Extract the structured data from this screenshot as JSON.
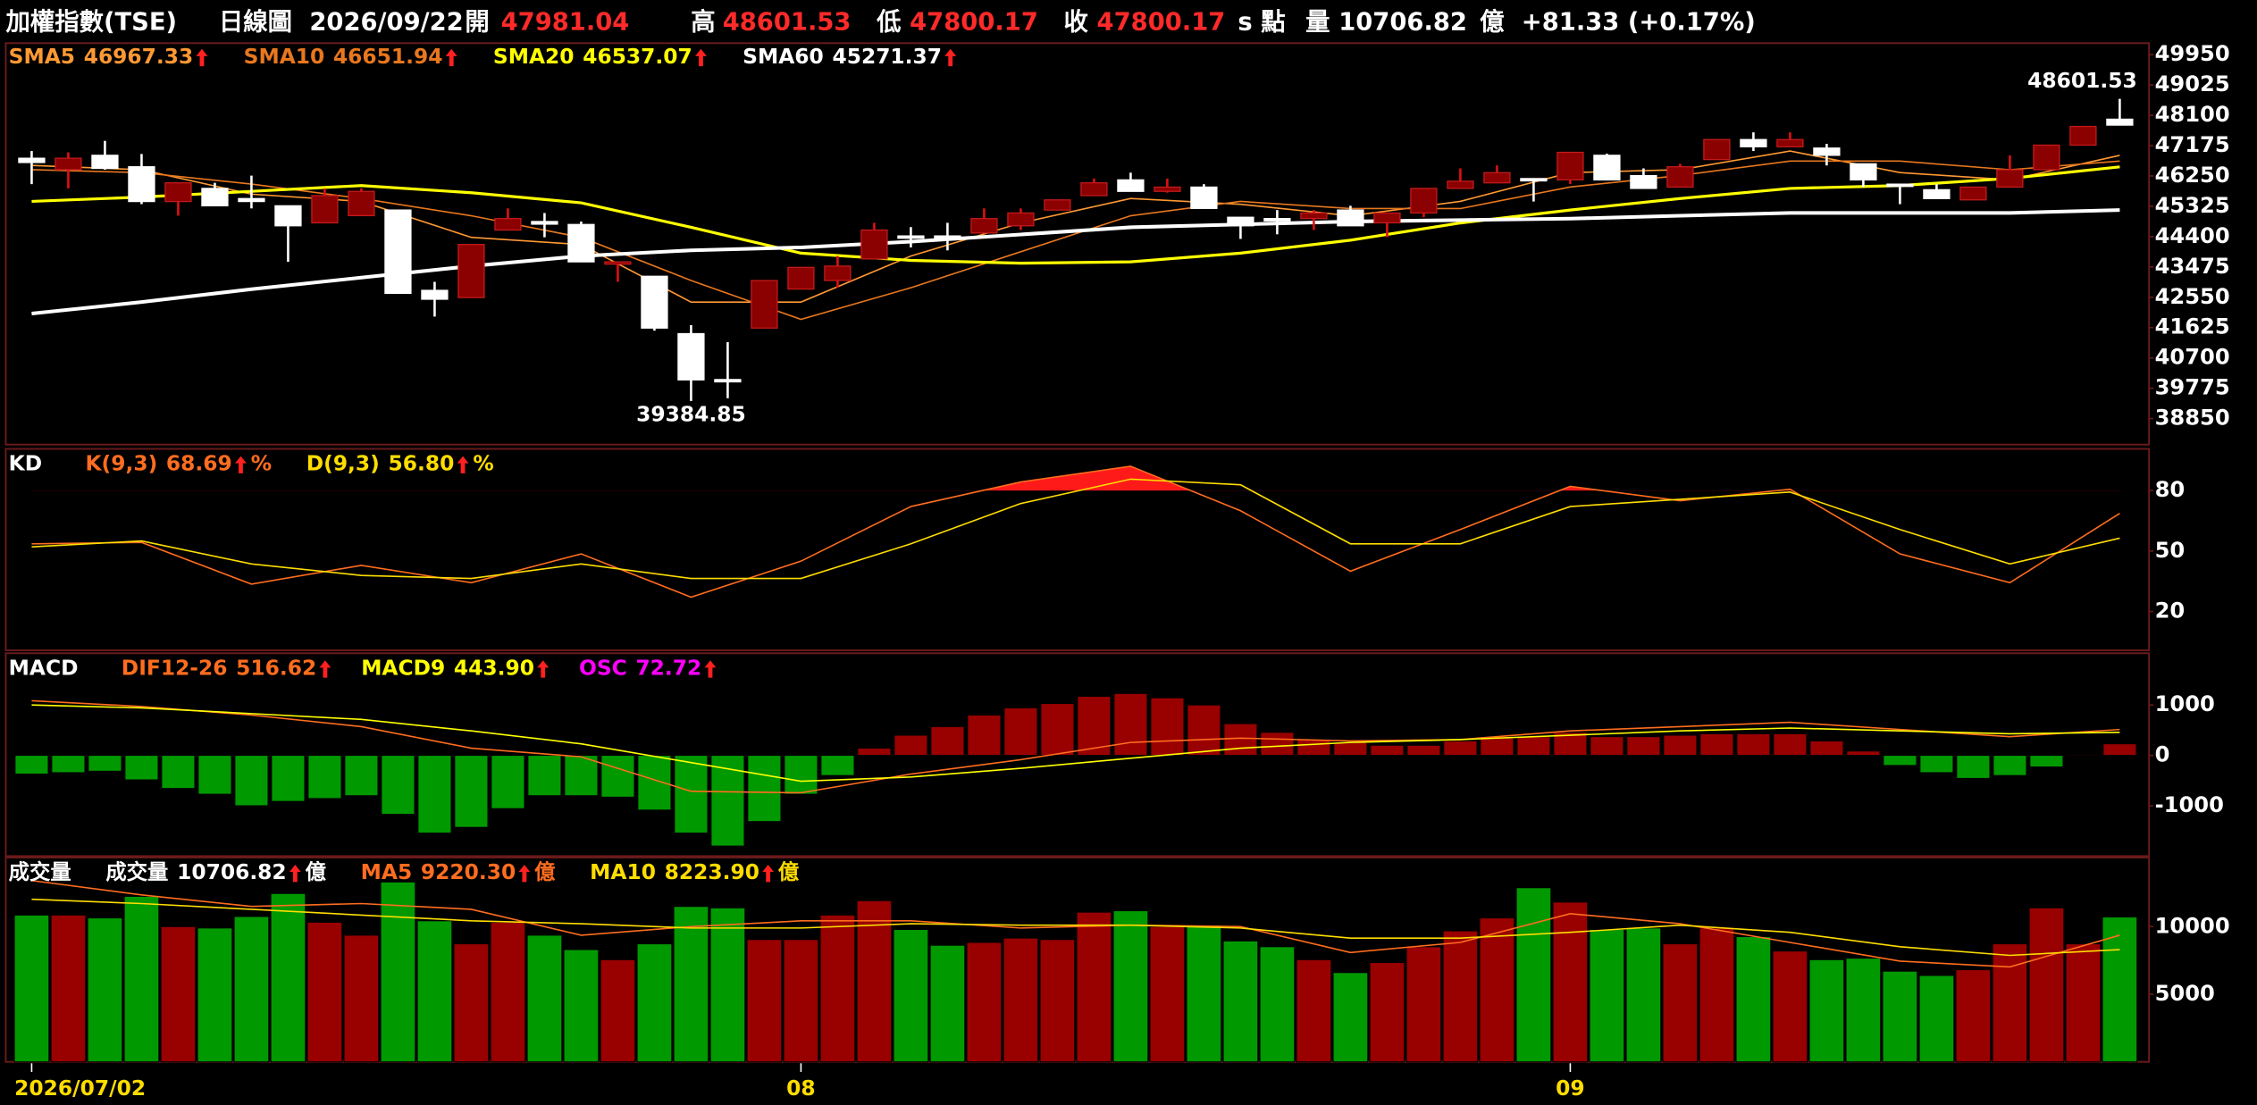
{
  "header": {
    "name": "加權指數(TSE)",
    "period": "日線圖",
    "date": "2026/09/22",
    "open_label": "開",
    "high_label": "高",
    "low_label": "低",
    "close_label": "收",
    "point_unit": "s 點",
    "volume_label": "量",
    "volume_unit": "億",
    "change": "+81.33 (+0.17%)"
  },
  "chart_data": [
    {
      "type": "candlestick",
      "categories": [
        "2026/07/02",
        null,
        null,
        null,
        null,
        null,
        null,
        null,
        null,
        null,
        null,
        null,
        null,
        null,
        null,
        null,
        null,
        null,
        null,
        null,
        null,
        "08",
        null,
        null,
        null,
        null,
        null,
        null,
        null,
        null,
        null,
        null,
        null,
        null,
        null,
        null,
        null,
        null,
        null,
        null,
        null,
        null,
        "09",
        null,
        null,
        null,
        null,
        null,
        null,
        null,
        null,
        null,
        null,
        null,
        null,
        null,
        null,
        null
      ],
      "open": [
        46790,
        46440,
        46880,
        46530,
        45470,
        45870,
        45560,
        45340,
        44820,
        45040,
        45210,
        42760,
        42540,
        44600,
        44860,
        44770,
        43580,
        43190,
        41440,
        40040,
        41610,
        42800,
        43060,
        43720,
        44420,
        44420,
        44510,
        44730,
        45210,
        45650,
        46130,
        45780,
        45910,
        44990,
        44950,
        44950,
        45210,
        44820,
        45120,
        45870,
        46040,
        46170,
        46130,
        46880,
        46260,
        45910,
        46750,
        47360,
        47140,
        47100,
        46620,
        46000,
        45830,
        45520,
        45910,
        46440,
        47190,
        47981.04
      ],
      "high": [
        47010,
        46970,
        47320,
        46920,
        46040,
        46040,
        46260,
        45340,
        45870,
        45870,
        45210,
        43020,
        44160,
        45260,
        45120,
        44860,
        43630,
        43190,
        41700,
        41180,
        43060,
        43460,
        43810,
        44820,
        44690,
        44820,
        45260,
        45260,
        45520,
        46170,
        46350,
        46170,
        46000,
        44990,
        45210,
        45210,
        45340,
        45120,
        45870,
        46480,
        46570,
        46170,
        46970,
        46930,
        46480,
        46620,
        47360,
        47580,
        47580,
        47230,
        46620,
        46000,
        46000,
        45910,
        46880,
        47190,
        47760,
        48601.53
      ],
      "low": [
        46000,
        45870,
        46440,
        45390,
        45040,
        45340,
        45260,
        43630,
        44820,
        45040,
        42670,
        41960,
        42540,
        44600,
        44380,
        43630,
        43020,
        41530,
        39384.85,
        39470,
        41610,
        42800,
        42840,
        43720,
        44070,
        43980,
        44510,
        44600,
        45210,
        45650,
        45780,
        45740,
        45260,
        44330,
        44470,
        44600,
        44730,
        44380,
        44990,
        45870,
        46040,
        45470,
        46000,
        46130,
        45870,
        45910,
        46750,
        47010,
        47140,
        46570,
        45910,
        45390,
        45560,
        45520,
        45910,
        46440,
        47190,
        47800.17
      ],
      "close": [
        46660,
        46790,
        46480,
        45470,
        46040,
        45340,
        45470,
        44730,
        45650,
        45780,
        42670,
        42490,
        44160,
        44950,
        44780,
        43630,
        43630,
        41610,
        40030,
        40000,
        43060,
        43460,
        43500,
        44600,
        44380,
        44380,
        44950,
        45120,
        45520,
        46040,
        45780,
        45910,
        45260,
        44730,
        44900,
        45120,
        44730,
        45120,
        45870,
        46090,
        46350,
        46130,
        46970,
        46130,
        45870,
        46530,
        47360,
        47140,
        47360,
        46880,
        46130,
        45960,
        45560,
        45910,
        46440,
        47190,
        47760,
        47800.17
      ],
      "up_color": "#8b0000",
      "down_color": "#ffffff",
      "ylim": [
        38100,
        50300
      ],
      "yticks": [
        49950,
        49025,
        48100,
        47175,
        46250,
        45325,
        44400,
        43475,
        42550,
        41625,
        40700,
        39775,
        38850
      ],
      "series": [
        {
          "name": "SMA5",
          "color": "#ff9933",
          "readout": "46967.33",
          "x": [
            0,
            3,
            6,
            9,
            12,
            15,
            18,
            21,
            24,
            27,
            30,
            33,
            36,
            39,
            42,
            45,
            48,
            51,
            54,
            57
          ],
          "values": [
            46571,
            46440,
            45694,
            45474,
            44377,
            44158,
            42403,
            42403,
            43807,
            44816,
            45562,
            45387,
            45036,
            45474,
            46352,
            46440,
            47010,
            46352,
            46132,
            46878
          ]
        },
        {
          "name": "SMA10",
          "color": "#e8771e",
          "readout": "46651.94",
          "x": [
            0,
            3,
            6,
            9,
            12,
            15,
            18,
            21,
            24,
            27,
            30,
            33,
            36,
            39,
            42,
            45,
            48,
            51,
            54,
            57
          ],
          "values": [
            46440,
            46352,
            46001,
            45562,
            45036,
            44377,
            43061,
            41876,
            42841,
            43938,
            45036,
            45474,
            45255,
            45255,
            45913,
            46264,
            46703,
            46703,
            46440,
            46703
          ]
        },
        {
          "name": "SMA20",
          "color": "#ffff00",
          "readout": "46537.07",
          "x": [
            0,
            3,
            6,
            9,
            12,
            15,
            18,
            21,
            24,
            27,
            30,
            33,
            36,
            39,
            42,
            45,
            48,
            51,
            54,
            57
          ],
          "values": [
            45474,
            45606,
            45781,
            45957,
            45738,
            45430,
            44684,
            43895,
            43675,
            43588,
            43631,
            43895,
            44290,
            44816,
            45211,
            45562,
            45869,
            45957,
            46176,
            46527
          ]
        },
        {
          "name": "SMA60",
          "color": "#ffffff",
          "readout": "45271.37",
          "x": [
            0,
            3,
            6,
            9,
            12,
            15,
            18,
            21,
            24,
            27,
            30,
            33,
            36,
            39,
            42,
            45,
            48,
            51,
            54,
            57
          ],
          "values": [
            42052,
            42403,
            42797,
            43149,
            43500,
            43807,
            43982,
            44070,
            44246,
            44465,
            44684,
            44772,
            44860,
            44904,
            44948,
            45036,
            45123,
            45123,
            45123,
            45211
          ]
        }
      ]
    },
    {
      "type": "line",
      "title": "KD",
      "ylim": [
        0,
        100
      ],
      "yticks": [
        20,
        50,
        80
      ],
      "fill_color": "#ff1a1a",
      "series": [
        {
          "name": "K(9,3)",
          "color": "#ff6d1f",
          "readout": "68.69",
          "unit": "%",
          "x": [
            0,
            3,
            6,
            9,
            12,
            15,
            18,
            21,
            24,
            27,
            30,
            33,
            36,
            39,
            42,
            45,
            48,
            51,
            54,
            57
          ],
          "values": [
            53.6,
            54.3,
            33.6,
            42.9,
            34.3,
            48.6,
            27.1,
            45,
            72.1,
            84.3,
            92.1,
            70,
            40,
            60.7,
            82.1,
            75,
            80.7,
            48.6,
            34.3,
            68.7
          ]
        },
        {
          "name": "D(9,3)",
          "color": "#ffdd00",
          "readout": "56.80",
          "unit": "%",
          "x": [
            0,
            3,
            6,
            9,
            12,
            15,
            18,
            21,
            24,
            27,
            30,
            33,
            36,
            39,
            42,
            45,
            48,
            51,
            54,
            57
          ],
          "values": [
            52.1,
            55,
            43.6,
            37.9,
            36.4,
            43.6,
            36.4,
            36.4,
            53.6,
            73.6,
            85.7,
            82.9,
            53.6,
            53.6,
            72.1,
            75.7,
            79.3,
            60.7,
            43.6,
            56.4
          ]
        }
      ]
    },
    {
      "type": "macd",
      "title": "MACD",
      "ylim": [
        -2000,
        2000
      ],
      "yticks": [
        -1000,
        0,
        1000
      ],
      "series": [
        {
          "name": "DIF12-26",
          "color": "#ff6d1f",
          "readout": "516.62",
          "x": [
            0,
            3,
            6,
            9,
            12,
            15,
            18,
            21,
            24,
            27,
            30,
            33,
            36,
            39,
            42,
            45,
            48,
            51,
            54,
            57
          ],
          "values": [
            1086,
            971,
            800,
            571,
            143,
            -29,
            -714,
            -743,
            -371,
            -86,
            257,
            343,
            286,
            314,
            486,
            571,
            657,
            514,
            371,
            514
          ]
        },
        {
          "name": "MACD9",
          "color": "#ffff00",
          "readout": "443.90",
          "x": [
            0,
            3,
            6,
            9,
            12,
            15,
            18,
            21,
            24,
            27,
            30,
            33,
            36,
            39,
            42,
            45,
            48,
            51,
            54,
            57
          ],
          "values": [
            1000,
            943,
            829,
            714,
            486,
            229,
            -143,
            -514,
            -429,
            -257,
            -57,
            143,
            257,
            314,
            400,
            486,
            543,
            486,
            429,
            457
          ]
        }
      ],
      "histogram": {
        "name": "OSC",
        "color": "#ff00ff",
        "readout": "72.72",
        "up_color": "#990000",
        "down_color": "#009900",
        "values": [
          -371,
          -343,
          -314,
          -486,
          -657,
          -771,
          -1000,
          -914,
          -857,
          -800,
          -1171,
          -1543,
          -1429,
          -1057,
          -800,
          -800,
          -829,
          -1086,
          -1543,
          -1800,
          -1314,
          -771,
          -400,
          143,
          400,
          571,
          800,
          943,
          1029,
          1171,
          1229,
          1143,
          1000,
          629,
          457,
          314,
          257,
          200,
          200,
          286,
          371,
          371,
          457,
          371,
          371,
          400,
          429,
          429,
          429,
          286,
          86,
          -200,
          -343,
          -457,
          -400,
          -229,
          20,
          229
        ]
      }
    },
    {
      "type": "volume",
      "title": "成交量",
      "ylim": [
        0,
        15000
      ],
      "yticks": [
        5000,
        10000
      ],
      "bars": {
        "name": "成交量",
        "color": "#ffffff",
        "unit": "億",
        "up_color": "#990000",
        "down_color": "#009900",
        "values": [
          10851,
          10851,
          10638,
          12234,
          10000,
          9894,
          10745,
          12447,
          10319,
          9362,
          13298,
          10426,
          8723,
          10319,
          9362,
          8298,
          7553,
          8723,
          11489,
          11383,
          9043,
          9043,
          10851,
          11915,
          9787,
          8617,
          8830,
          9149,
          9043,
          11064,
          11170,
          10000,
          10106,
          8936,
          8511,
          7553,
          6596,
          7340,
          8511,
          9681,
          10638,
          12872,
          11809,
          9787,
          9894,
          8723,
          9894,
          9255,
          8191,
          7553,
          7660,
          6702,
          6383,
          6809,
          8723,
          11383,
          8723,
          10706.82
        ]
      },
      "series": [
        {
          "name": "MA5",
          "color": "#ff6d1f",
          "readout": "9220.30",
          "unit": "億",
          "x": [
            0,
            3,
            6,
            9,
            12,
            15,
            18,
            21,
            24,
            27,
            30,
            33,
            36,
            39,
            42,
            45,
            48,
            51,
            54,
            57
          ],
          "values": [
            13404,
            12340,
            11489,
            11702,
            11277,
            9362,
            10000,
            10426,
            10426,
            9894,
            10106,
            10000,
            8085,
            8830,
            10957,
            10213,
            8830,
            7447,
            7021,
            9362
          ]
        },
        {
          "name": "MA10",
          "color": "#ffdd00",
          "readout": "8223.90",
          "unit": "億",
          "x": [
            0,
            3,
            6,
            9,
            12,
            15,
            18,
            21,
            24,
            27,
            30,
            33,
            36,
            39,
            42,
            45,
            48,
            51,
            54,
            57
          ],
          "values": [
            12021,
            11702,
            11277,
            10851,
            10426,
            10213,
            9894,
            9894,
            10213,
            10106,
            10106,
            9894,
            9149,
            9149,
            9574,
            10106,
            9574,
            8511,
            7872,
            8298
          ]
        }
      ]
    }
  ]
}
